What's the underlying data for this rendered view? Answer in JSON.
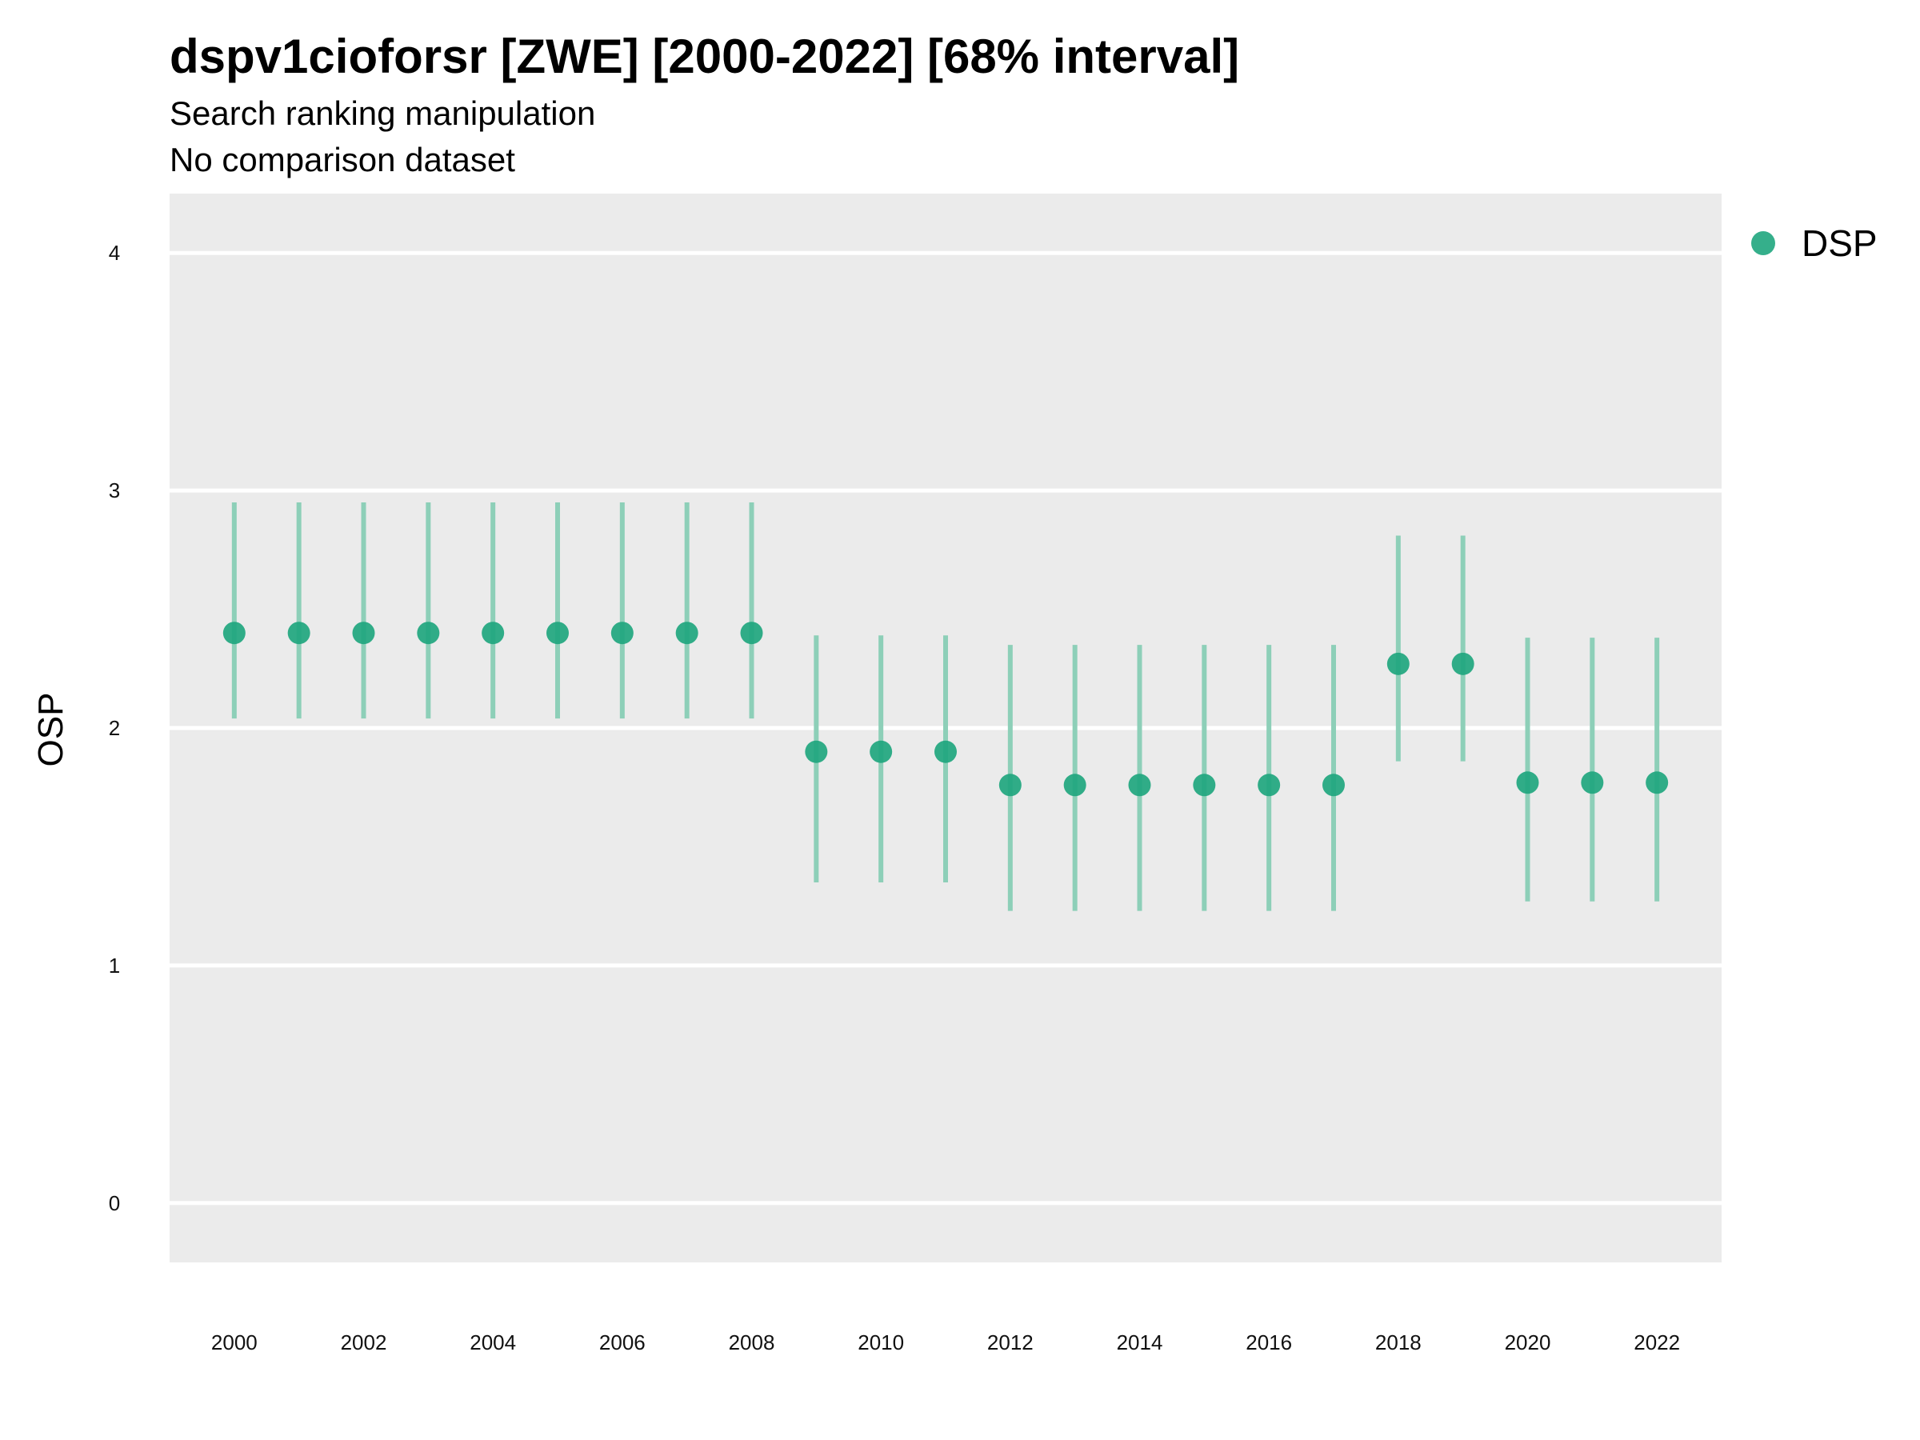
{
  "chart_data": {
    "type": "scatter",
    "title": "dspv1cioforsr [ZWE] [2000-2022] [68% interval]",
    "subtitle": "Search ranking manipulation",
    "subtitle2": "No comparison dataset",
    "xlabel": "",
    "ylabel": "OSP",
    "xlim": [
      1999,
      2023
    ],
    "ylim": [
      -0.25,
      4.25
    ],
    "y_ticks": [
      0,
      1,
      2,
      3,
      4
    ],
    "x_ticks": [
      2000,
      2002,
      2004,
      2006,
      2008,
      2010,
      2012,
      2014,
      2016,
      2018,
      2020,
      2022
    ],
    "grid": true,
    "legend_position": "right",
    "colors": {
      "point": "#1fa67e",
      "interval": "#8dcfb8",
      "panel": "#ebebeb",
      "grid": "#ffffff"
    },
    "series": [
      {
        "name": "DSP",
        "x": [
          2000,
          2001,
          2002,
          2003,
          2004,
          2005,
          2006,
          2007,
          2008,
          2009,
          2010,
          2011,
          2012,
          2013,
          2014,
          2015,
          2016,
          2017,
          2018,
          2019,
          2020,
          2021,
          2022
        ],
        "y": [
          2.4,
          2.4,
          2.4,
          2.4,
          2.4,
          2.4,
          2.4,
          2.4,
          2.4,
          1.9,
          1.9,
          1.9,
          1.76,
          1.76,
          1.76,
          1.76,
          1.76,
          1.76,
          2.27,
          2.27,
          1.77,
          1.77,
          1.77
        ],
        "lower": [
          2.04,
          2.04,
          2.04,
          2.04,
          2.04,
          2.04,
          2.04,
          2.04,
          2.04,
          1.35,
          1.35,
          1.35,
          1.23,
          1.23,
          1.23,
          1.23,
          1.23,
          1.23,
          1.86,
          1.86,
          1.27,
          1.27,
          1.27
        ],
        "upper": [
          2.95,
          2.95,
          2.95,
          2.95,
          2.95,
          2.95,
          2.95,
          2.95,
          2.95,
          2.39,
          2.39,
          2.39,
          2.35,
          2.35,
          2.35,
          2.35,
          2.35,
          2.35,
          2.81,
          2.81,
          2.38,
          2.38,
          2.38
        ]
      }
    ]
  }
}
